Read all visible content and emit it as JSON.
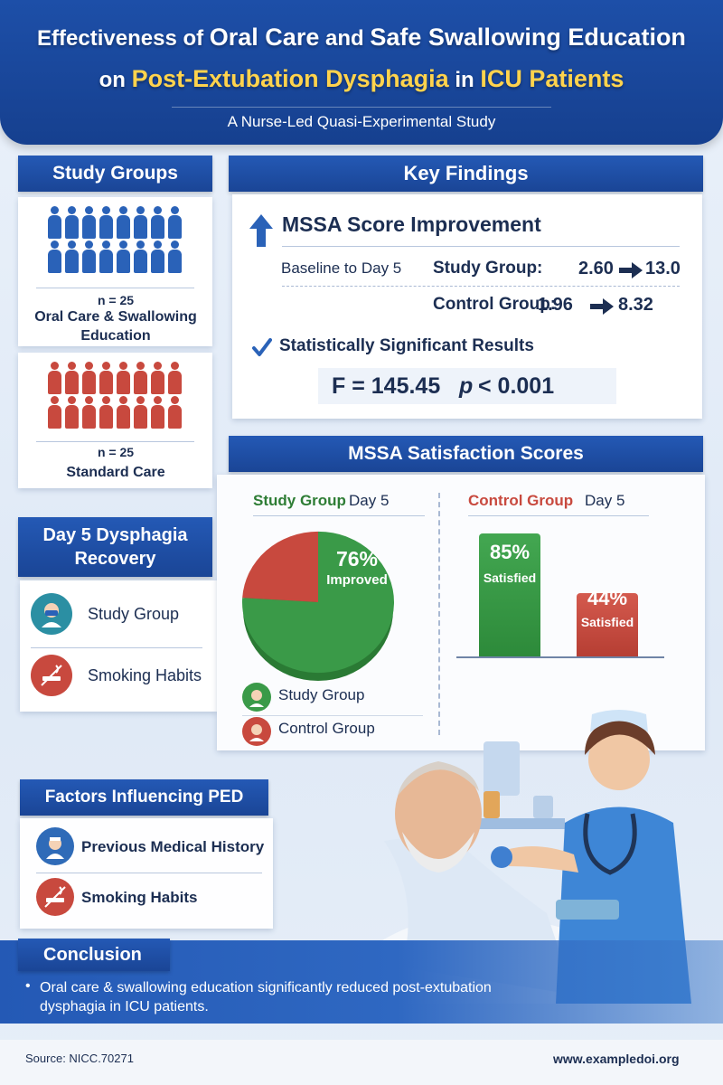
{
  "header": {
    "title_line1": {
      "a": "Effectiveness of ",
      "b": "Oral Care",
      "c": " and ",
      "d": "Safe Swallowing Education"
    },
    "title_line2": {
      "a": "on ",
      "b": "Post-Extubation Dysphagia",
      "c": " in ",
      "d": "ICU Patients"
    },
    "subtitle": "A Nurse-Led Quasi-Experimental Study"
  },
  "study_groups": {
    "title": "Study Groups",
    "groups": [
      {
        "n": "n = 25",
        "label": "Oral Care & Swallowing Education",
        "color": "#2a62b8"
      },
      {
        "n": "n = 25",
        "label": "Standard Care",
        "color": "#c8493e"
      }
    ]
  },
  "key_findings": {
    "title": "Key Findings",
    "mssa_title": "MSSA Score Improvement",
    "baseline_label": "Baseline to Day 5",
    "study_label": "Study Group:",
    "study_from": "2.60",
    "study_to": "13.0",
    "control_label": "Control Group:",
    "control_from": "1.96",
    "control_to": "8.32",
    "sig_title": "Statistically Significant Results",
    "f_stat": "F = 145.45",
    "p_val": "p",
    "p_rest": "< 0.001"
  },
  "dysphagia_recovery": {
    "title": "Day 5 Dysphagia Recovery",
    "items": [
      "Study Group",
      "Smoking Habits"
    ]
  },
  "satisfaction": {
    "title": "MSSA Satisfaction Scores",
    "study_head": "Study Group",
    "study_day": "Day 5",
    "control_head": "Control Group",
    "control_day": "Day 5",
    "pie_pct": "76%",
    "pie_text": "Improved",
    "bar1_pct": "85%",
    "bar1_text": "Satisfied",
    "bar2_pct": "44%",
    "bar2_text": "Satisfied",
    "legend": [
      "Study Group",
      "Control Group"
    ]
  },
  "chart_data": [
    {
      "type": "pie",
      "title": "Study Group Day 5",
      "slices": [
        {
          "name": "Improved",
          "value": 76
        },
        {
          "name": "",
          "value": 24
        }
      ],
      "colors": [
        "#3a9a48",
        "#c8493e"
      ]
    },
    {
      "type": "bar",
      "title": "Control Group Day 5",
      "categories": [
        "",
        ""
      ],
      "values": [
        85,
        44
      ],
      "labels": [
        "Satisfied",
        "Satisfied"
      ],
      "colors": [
        "#3a9a48",
        "#c8493e"
      ],
      "ylim": [
        0,
        100
      ]
    }
  ],
  "factors": {
    "title": "Factors Influencing PED",
    "items": [
      "Previous Medical History",
      "Smoking Habits"
    ]
  },
  "conclusion": {
    "title": "Conclusion",
    "text": "Oral care & swallowing education significantly reduced post-extubation dysphagia in ICU patients."
  },
  "footer": {
    "source": "Source: NICC.70271",
    "url": "www.exampledoi.org"
  },
  "colors": {
    "primary": "#1d4fa8",
    "green": "#3a9a48",
    "red": "#c8493e",
    "accent": "#ffd34d"
  },
  "icons": [
    "arrow-up-icon",
    "checkmark-icon",
    "arrow-right-icon",
    "patient-icon",
    "smoking-icon",
    "history-icon"
  ]
}
